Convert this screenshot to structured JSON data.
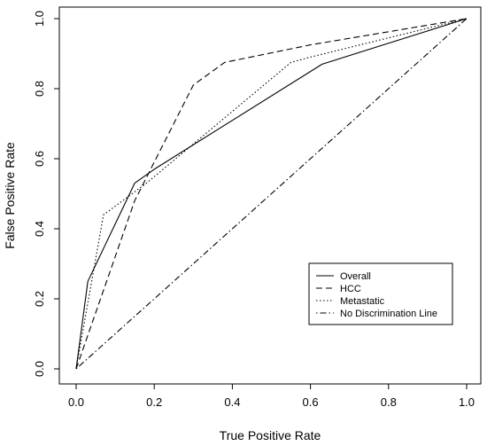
{
  "chart_data": {
    "type": "line",
    "title": "",
    "xlabel": "True Positive Rate",
    "ylabel": "False Positive Rate",
    "xlim": [
      0,
      1
    ],
    "ylim": [
      0,
      1
    ],
    "x_ticks": [
      "0.0",
      "0.2",
      "0.4",
      "0.6",
      "0.8",
      "1.0"
    ],
    "y_ticks": [
      "0.0",
      "0.2",
      "0.4",
      "0.6",
      "0.8",
      "1.0"
    ],
    "grid": false,
    "legend_position": "bottom-right",
    "series": [
      {
        "name": "Overall",
        "line_style": "solid",
        "color": "#000000",
        "points": [
          [
            0,
            0
          ],
          [
            0.03,
            0.25
          ],
          [
            0.15,
            0.53
          ],
          [
            0.2,
            0.57
          ],
          [
            0.63,
            0.87
          ],
          [
            1,
            1
          ]
        ]
      },
      {
        "name": "HCC",
        "line_style": "dashed",
        "color": "#000000",
        "points": [
          [
            0,
            0
          ],
          [
            0.15,
            0.48
          ],
          [
            0.3,
            0.81
          ],
          [
            0.38,
            0.875
          ],
          [
            0.6,
            0.925
          ],
          [
            1,
            1
          ]
        ]
      },
      {
        "name": "Metastatic",
        "line_style": "dotted",
        "color": "#000000",
        "points": [
          [
            0,
            0
          ],
          [
            0.07,
            0.44
          ],
          [
            0.18,
            0.53
          ],
          [
            0.55,
            0.875
          ],
          [
            0.6,
            0.89
          ],
          [
            1,
            1
          ]
        ]
      },
      {
        "name": "No Discrimination Line",
        "line_style": "dashdot",
        "color": "#000000",
        "points": [
          [
            0,
            0
          ],
          [
            1,
            1
          ]
        ]
      }
    ]
  }
}
